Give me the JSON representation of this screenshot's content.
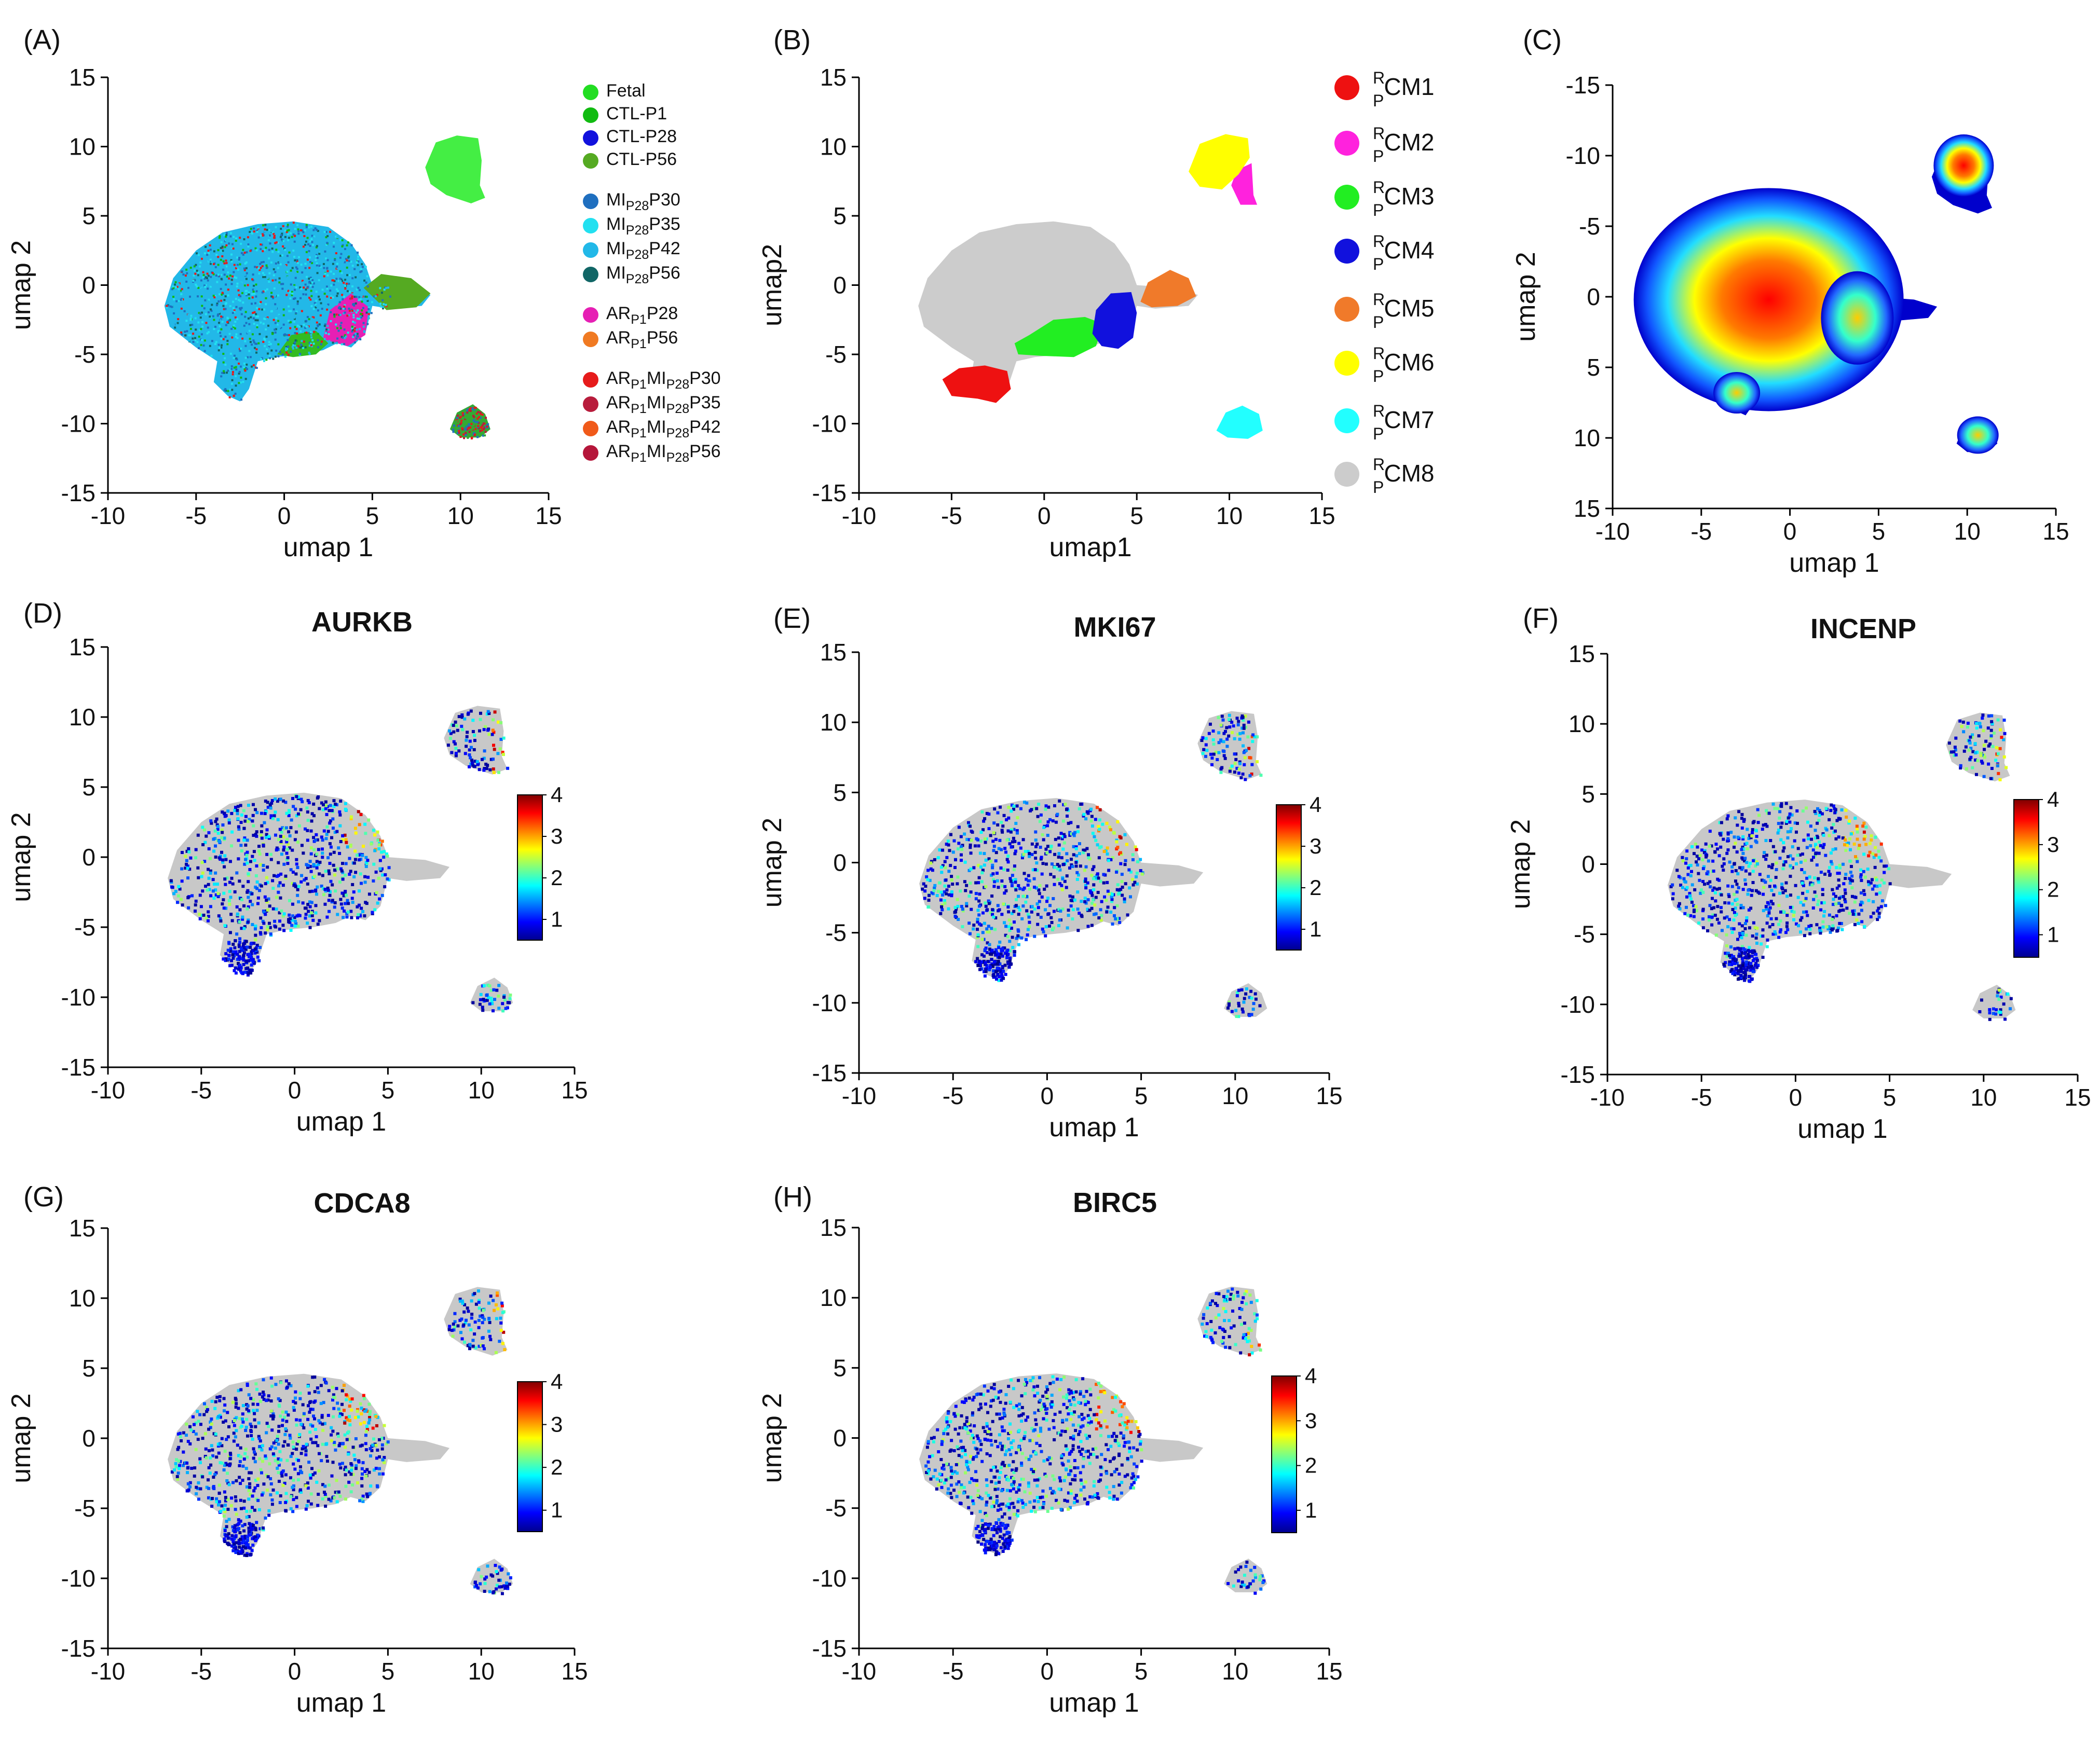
{
  "chart_data": [
    {
      "id": "A",
      "type": "scatter",
      "panel_label": "(A)",
      "xlabel": "umap 1",
      "ylabel": "umap 2",
      "xlim": [
        -10,
        15
      ],
      "ylim": [
        -15,
        15
      ],
      "xticks": [
        "-10",
        "-5",
        "0",
        "5",
        "10",
        "15"
      ],
      "yticks": [
        "15",
        "10",
        "5",
        "0",
        "-5",
        "-10",
        "-15"
      ],
      "legend_position": "right",
      "legend": [
        {
          "label": "Fetal",
          "color": "#22dd22"
        },
        {
          "label": "CTL-P1",
          "color": "#11bb11"
        },
        {
          "label": "CTL-P28",
          "color": "#1111dd"
        },
        {
          "label": "CTL-P56",
          "color": "#55aa22"
        },
        {
          "main": "MI",
          "sub": "P28",
          "tail": "P30",
          "color": "#1f6fbf"
        },
        {
          "main": "MI",
          "sub": "P28",
          "tail": "P35",
          "color": "#22e0f0"
        },
        {
          "main": "MI",
          "sub": "P28",
          "tail": "P42",
          "color": "#22b8e8"
        },
        {
          "main": "MI",
          "sub": "P28",
          "tail": "P56",
          "color": "#116666"
        },
        {
          "main": "AR",
          "sub": "P1",
          "tail": "P28",
          "color": "#e61fb4"
        },
        {
          "main": "AR",
          "sub": "P1",
          "tail": "P56",
          "color": "#f07a22"
        },
        {
          "main": "AR",
          "sub": "P1",
          "main2": "MI",
          "sub2": "P28",
          "tail": "P30",
          "color": "#e61b1b"
        },
        {
          "main": "AR",
          "sub": "P1",
          "main2": "MI",
          "sub2": "P28",
          "tail": "P35",
          "color": "#b81c3c"
        },
        {
          "main": "AR",
          "sub": "P1",
          "main2": "MI",
          "sub2": "P28",
          "tail": "P42",
          "color": "#f05a1a"
        },
        {
          "main": "AR",
          "sub": "P1",
          "main2": "MI",
          "sub2": "P28",
          "tail": "P56",
          "color": "#b5163a"
        }
      ]
    },
    {
      "id": "B",
      "type": "scatter",
      "panel_label": "(B)",
      "xlabel": "umap1",
      "ylabel": "umap2",
      "xlim": [
        -10,
        15
      ],
      "ylim": [
        -15,
        15
      ],
      "xticks": [
        "-10",
        "-5",
        "0",
        "5",
        "10",
        "15"
      ],
      "yticks": [
        "15",
        "10",
        "5",
        "0",
        "-5",
        "-10",
        "-15"
      ],
      "legend_position": "right",
      "clusters": [
        {
          "sup": "R",
          "sub": "P",
          "name": "CM1",
          "color": "#ee1111",
          "center": [
            -3.0,
            -7.5
          ]
        },
        {
          "sup": "R",
          "sub": "P",
          "name": "CM2",
          "color": "#ff22dd",
          "center": [
            10.8,
            6.5
          ]
        },
        {
          "sup": "R",
          "sub": "P",
          "name": "CM3",
          "color": "#22ee22",
          "center": [
            0.5,
            -4.0
          ]
        },
        {
          "sup": "R",
          "sub": "P",
          "name": "CM4",
          "color": "#1111dd",
          "center": [
            4.0,
            -2.5
          ]
        },
        {
          "sup": "R",
          "sub": "P",
          "name": "CM5",
          "color": "#f07a2a",
          "center": [
            7.2,
            -0.5
          ]
        },
        {
          "sup": "R",
          "sub": "P",
          "name": "CM6",
          "color": "#ffff00",
          "center": [
            9.5,
            8.5
          ]
        },
        {
          "sup": "R",
          "sub": "P",
          "name": "CM7",
          "color": "#22ffff",
          "center": [
            10.5,
            -10.2
          ]
        },
        {
          "sup": "R",
          "sub": "P",
          "name": "CM8",
          "color": "#cccccc",
          "center": [
            -1.5,
            0.5
          ]
        }
      ]
    },
    {
      "id": "C",
      "type": "heatmap",
      "panel_label": "(C)",
      "xlabel": "umap 1",
      "ylabel": "umap 2",
      "xlim": [
        -10,
        15
      ],
      "ylim": [
        -15,
        15
      ],
      "y_inverted": true,
      "xticks": [
        "-10",
        "-5",
        "0",
        "5",
        "10",
        "15"
      ],
      "yticks": [
        "-15",
        "-10",
        "-5",
        "0",
        "5",
        "10",
        "15"
      ],
      "note": "cell density map"
    },
    {
      "id": "D",
      "type": "scatter",
      "panel_label": "(D)",
      "title": "AURKB",
      "xlabel": "umap 1",
      "ylabel": "umap 2",
      "xlim": [
        -10,
        15
      ],
      "ylim": [
        -15,
        15
      ],
      "xticks": [
        "-10",
        "-5",
        "0",
        "5",
        "10",
        "15"
      ],
      "yticks": [
        "15",
        "10",
        "5",
        "0",
        "-5",
        "-10",
        "-15"
      ],
      "colorbar": {
        "range": [
          0.5,
          4
        ],
        "ticks": [
          "4",
          "3",
          "2",
          "1"
        ]
      }
    },
    {
      "id": "E",
      "type": "scatter",
      "panel_label": "(E)",
      "title": "MKI67",
      "xlabel": "umap 1",
      "ylabel": "umap 2",
      "xlim": [
        -10,
        15
      ],
      "ylim": [
        -15,
        15
      ],
      "xticks": [
        "-10",
        "-5",
        "0",
        "5",
        "10",
        "15"
      ],
      "yticks": [
        "15",
        "10",
        "5",
        "0",
        "-5",
        "-10",
        "-15"
      ],
      "colorbar": {
        "range": [
          0.5,
          4
        ],
        "ticks": [
          "4",
          "3",
          "2",
          "1"
        ]
      }
    },
    {
      "id": "F",
      "type": "scatter",
      "panel_label": "(F)",
      "title": "INCENP",
      "xlabel": "umap 1",
      "ylabel": "umap 2",
      "xlim": [
        -10,
        15
      ],
      "ylim": [
        -15,
        15
      ],
      "xticks": [
        "-10",
        "-5",
        "0",
        "5",
        "10",
        "15"
      ],
      "yticks": [
        "15",
        "10",
        "5",
        "0",
        "-5",
        "-10",
        "-15"
      ],
      "colorbar": {
        "range": [
          0.5,
          4
        ],
        "ticks": [
          "4",
          "3",
          "2",
          "1"
        ]
      }
    },
    {
      "id": "G",
      "type": "scatter",
      "panel_label": "(G)",
      "title": "CDCA8",
      "xlabel": "umap 1",
      "ylabel": "umap 2",
      "xlim": [
        -10,
        15
      ],
      "ylim": [
        -15,
        15
      ],
      "xticks": [
        "-10",
        "-5",
        "0",
        "5",
        "10",
        "15"
      ],
      "yticks": [
        "15",
        "10",
        "5",
        "0",
        "-5",
        "-10",
        "-15"
      ],
      "colorbar": {
        "range": [
          0.5,
          4
        ],
        "ticks": [
          "4",
          "3",
          "2",
          "1"
        ]
      }
    },
    {
      "id": "H",
      "type": "scatter",
      "panel_label": "(H)",
      "title": "BIRC5",
      "xlabel": "umap 1",
      "ylabel": "umap 2",
      "xlim": [
        -10,
        15
      ],
      "ylim": [
        -15,
        15
      ],
      "xticks": [
        "-10",
        "-5",
        "0",
        "5",
        "10",
        "15"
      ],
      "yticks": [
        "15",
        "10",
        "5",
        "0",
        "-5",
        "-10",
        "-15"
      ],
      "colorbar": {
        "range": [
          0.5,
          4
        ],
        "ticks": [
          "4",
          "3",
          "2",
          "1"
        ]
      }
    }
  ]
}
